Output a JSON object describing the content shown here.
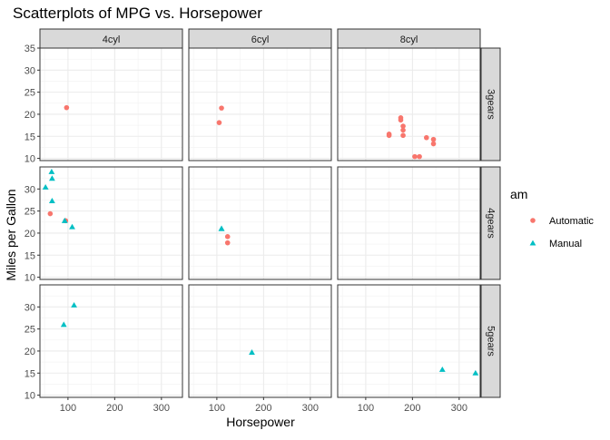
{
  "chart_data": {
    "type": "scatter",
    "title": "Scatterplots of MPG vs. Horsepower",
    "xlabel": "Horsepower",
    "ylabel": "Miles per Gallon",
    "xlim": [
      40,
      345
    ],
    "ylim": [
      9.5,
      35
    ],
    "x_ticks": [
      100,
      200,
      300
    ],
    "x_tick_labels": [
      "100",
      "200",
      "300"
    ],
    "y_ticks_top": [
      10,
      15,
      20,
      25,
      30,
      35
    ],
    "y_tick_labels_top": [
      "10",
      "15",
      "20",
      "25",
      "30",
      "35"
    ],
    "y_ticks": [
      10,
      15,
      20,
      25,
      30
    ],
    "y_tick_labels": [
      "10",
      "15",
      "20",
      "25",
      "30"
    ],
    "grid": true,
    "facet_cols": [
      "4cyl",
      "6cyl",
      "8cyl"
    ],
    "facet_rows": [
      "3gears",
      "4gears",
      "5gears"
    ],
    "legend": {
      "title": "am",
      "placement": "right",
      "entries": [
        {
          "label": "Automatic",
          "shape": "circle",
          "color": "#F8766D"
        },
        {
          "label": "Manual",
          "shape": "triangle",
          "color": "#00BFC4"
        }
      ]
    },
    "series": [
      {
        "name": "Automatic",
        "color": "#F8766D",
        "shape": "circle",
        "points": [
          {
            "col": "4cyl",
            "row": "3gears",
            "x": 97,
            "y": 21.5
          },
          {
            "col": "6cyl",
            "row": "3gears",
            "x": 110,
            "y": 21.4
          },
          {
            "col": "6cyl",
            "row": "3gears",
            "x": 105,
            "y": 18.1
          },
          {
            "col": "8cyl",
            "row": "3gears",
            "x": 175,
            "y": 18.7
          },
          {
            "col": "8cyl",
            "row": "3gears",
            "x": 175,
            "y": 19.2
          },
          {
            "col": "8cyl",
            "row": "3gears",
            "x": 180,
            "y": 17.3
          },
          {
            "col": "8cyl",
            "row": "3gears",
            "x": 180,
            "y": 16.4
          },
          {
            "col": "8cyl",
            "row": "3gears",
            "x": 180,
            "y": 15.2
          },
          {
            "col": "8cyl",
            "row": "3gears",
            "x": 150,
            "y": 15.5
          },
          {
            "col": "8cyl",
            "row": "3gears",
            "x": 150,
            "y": 15.2
          },
          {
            "col": "8cyl",
            "row": "3gears",
            "x": 205,
            "y": 10.4
          },
          {
            "col": "8cyl",
            "row": "3gears",
            "x": 215,
            "y": 10.4
          },
          {
            "col": "8cyl",
            "row": "3gears",
            "x": 230,
            "y": 14.7
          },
          {
            "col": "8cyl",
            "row": "3gears",
            "x": 245,
            "y": 14.3
          },
          {
            "col": "8cyl",
            "row": "3gears",
            "x": 245,
            "y": 13.3
          },
          {
            "col": "4cyl",
            "row": "4gears",
            "x": 62,
            "y": 24.4
          },
          {
            "col": "4cyl",
            "row": "4gears",
            "x": 95,
            "y": 22.8
          },
          {
            "col": "6cyl",
            "row": "4gears",
            "x": 123,
            "y": 19.2
          },
          {
            "col": "6cyl",
            "row": "4gears",
            "x": 123,
            "y": 17.8
          }
        ]
      },
      {
        "name": "Manual",
        "color": "#00BFC4",
        "shape": "triangle",
        "points": [
          {
            "col": "4cyl",
            "row": "4gears",
            "x": 93,
            "y": 22.8
          },
          {
            "col": "4cyl",
            "row": "4gears",
            "x": 66,
            "y": 32.4
          },
          {
            "col": "4cyl",
            "row": "4gears",
            "x": 52,
            "y": 30.4
          },
          {
            "col": "4cyl",
            "row": "4gears",
            "x": 65,
            "y": 33.9
          },
          {
            "col": "4cyl",
            "row": "4gears",
            "x": 66,
            "y": 27.3
          },
          {
            "col": "4cyl",
            "row": "4gears",
            "x": 109,
            "y": 21.4
          },
          {
            "col": "6cyl",
            "row": "4gears",
            "x": 110,
            "y": 21.0
          },
          {
            "col": "6cyl",
            "row": "4gears",
            "x": 110,
            "y": 21.0
          },
          {
            "col": "4cyl",
            "row": "5gears",
            "x": 91,
            "y": 26.0
          },
          {
            "col": "4cyl",
            "row": "5gears",
            "x": 113,
            "y": 30.4
          },
          {
            "col": "6cyl",
            "row": "5gears",
            "x": 175,
            "y": 19.7
          },
          {
            "col": "8cyl",
            "row": "5gears",
            "x": 264,
            "y": 15.8
          },
          {
            "col": "8cyl",
            "row": "5gears",
            "x": 335,
            "y": 15.0
          }
        ]
      }
    ]
  }
}
